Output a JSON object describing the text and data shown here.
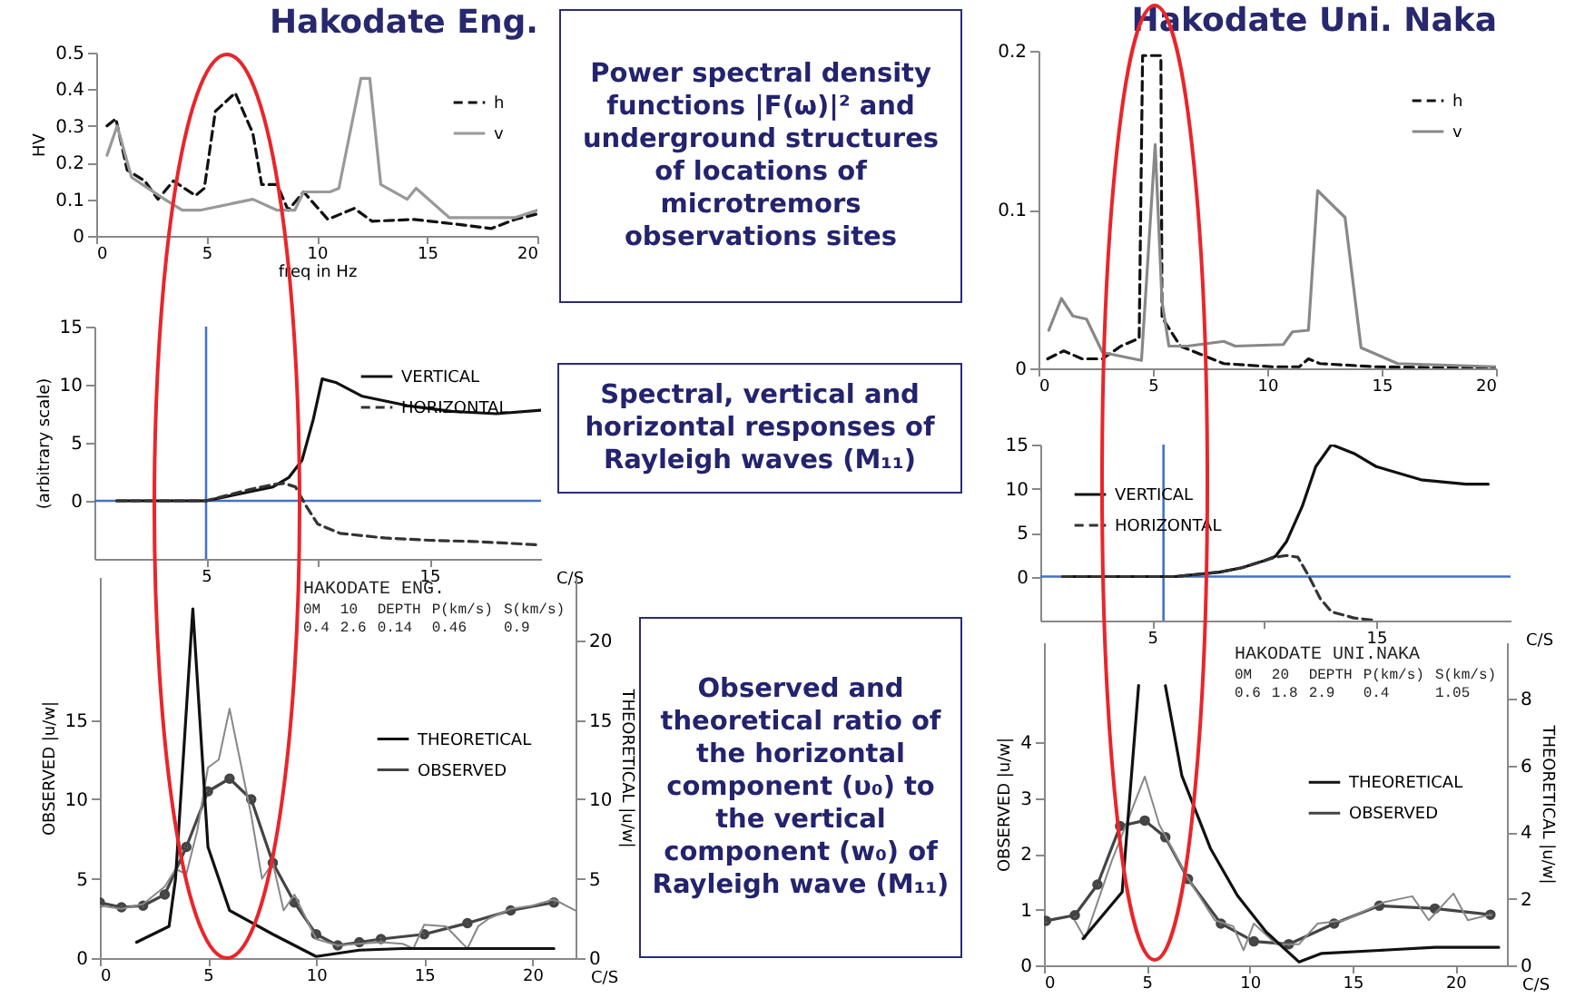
{
  "chart_data": [
    {
      "type": "line",
      "title": "Hakodate Eng.",
      "xlabel": "freq in Hz",
      "ylabel": "HV",
      "xlim": [
        0,
        20
      ],
      "xticks": [
        0,
        5,
        10,
        15,
        20
      ],
      "ylim": [
        0,
        0.5
      ],
      "yticks": [
        0,
        0.1,
        0.2,
        0.3,
        0.4,
        0.5
      ],
      "grid": false,
      "legend": "top right",
      "series": [
        {
          "name": "h",
          "color": "#111111",
          "line_style": "dashed",
          "x": [
            0.49,
            0.89,
            1.4,
            2.2,
            2.8,
            3.5,
            4.5,
            4.9,
            5.4,
            6.3,
            7.1,
            7.5,
            8.2,
            8.7,
            9.4,
            10.5,
            11.7,
            12.5,
            14.4,
            16.6,
            17.9,
            19,
            20
          ],
          "values": [
            0.3,
            0.32,
            0.18,
            0.15,
            0.1,
            0.15,
            0.11,
            0.13,
            0.34,
            0.39,
            0.28,
            0.14,
            0.14,
            0.07,
            0.12,
            0.045,
            0.075,
            0.04,
            0.045,
            0.03,
            0.02,
            0.045,
            0.06
          ]
        },
        {
          "name": "v",
          "color": "#999999",
          "line_style": "solid",
          "x": [
            0.49,
            0.95,
            1.6,
            3.1,
            3.9,
            4.7,
            6.3,
            7.1,
            8.2,
            9,
            9.4,
            10.6,
            11,
            12,
            12.4,
            12.9,
            14.1,
            14.5,
            16,
            19,
            20
          ],
          "values": [
            0.22,
            0.3,
            0.16,
            0.1,
            0.07,
            0.07,
            0.09,
            0.1,
            0.07,
            0.07,
            0.12,
            0.12,
            0.13,
            0.43,
            0.43,
            0.14,
            0.1,
            0.13,
            0.05,
            0.05,
            0.07
          ]
        }
      ]
    },
    {
      "type": "other",
      "title": "Power spectral density functions |F(ω)|² and underground structures of locations of microtremors observations sites"
    },
    {
      "type": "line",
      "title": "Hakodate Uni. Naka",
      "xlim": [
        0,
        20
      ],
      "xticks": [
        0,
        5,
        10,
        15,
        20
      ],
      "ylim": [
        0,
        0.2
      ],
      "yticks": [
        0,
        0.1,
        0.2
      ],
      "grid": false,
      "legend": "top right",
      "series": [
        {
          "name": "h",
          "color": "#111111",
          "line_style": "dashed",
          "x": [
            0.4,
            1.1,
            1.9,
            2.8,
            3.6,
            4.4,
            4.55,
            5.35,
            5.4,
            6.2,
            8.1,
            10.2,
            11.4,
            11.8,
            12.3,
            14.7,
            20
          ],
          "values": [
            0.006,
            0.011,
            0.006,
            0.006,
            0.014,
            0.019,
            0.197,
            0.197,
            0.032,
            0.014,
            0.003,
            0.001,
            0.001,
            0.006,
            0.003,
            0.001,
            0
          ]
        },
        {
          "name": "v",
          "color": "#888888",
          "line_style": "solid",
          "x": [
            0.45,
            1,
            1.5,
            2.1,
            2.8,
            4.5,
            5.1,
            5.4,
            5.7,
            6.5,
            8.1,
            8.6,
            10.7,
            11.1,
            11.8,
            12.2,
            13.4,
            14.1,
            15.7,
            20
          ],
          "values": [
            0.024,
            0.044,
            0.033,
            0.031,
            0.01,
            0.005,
            0.141,
            0.042,
            0.014,
            0.014,
            0.017,
            0.014,
            0.015,
            0.023,
            0.024,
            0.112,
            0.095,
            0.013,
            0.003,
            0.001
          ]
        }
      ]
    },
    {
      "type": "line",
      "xlabel": "C/S",
      "ylabel": "(arbitrary scale)",
      "xlim": [
        0,
        20
      ],
      "xticks": [
        5,
        {
          "value": 10,
          "label": null
        },
        15
      ],
      "ylim": [
        -5,
        15
      ],
      "yticks": [
        0,
        5,
        10,
        15
      ],
      "grid": false,
      "legend": "top right",
      "ref_lines": [
        {
          "axis": "x",
          "value": 5,
          "color": "#4472c4"
        },
        {
          "axis": "y",
          "value": 0,
          "color": "#4472c4"
        }
      ],
      "series": [
        {
          "name": "VERTICAL",
          "color": "#111111",
          "line_style": "solid",
          "x": [
            1,
            3,
            5,
            6,
            7,
            8,
            8.7,
            9.3,
            9.8,
            10.2,
            10.8,
            12,
            14,
            16,
            18,
            20
          ],
          "values": [
            0,
            0,
            0,
            0.4,
            0.8,
            1.2,
            2,
            3.5,
            7,
            10.5,
            10.2,
            9,
            8.2,
            7.7,
            7.5,
            7.8
          ]
        },
        {
          "name": "HORIZONTAL",
          "color": "#333333",
          "line_style": "dashed",
          "x": [
            1,
            3,
            5,
            6,
            7,
            8,
            8.5,
            9,
            9.5,
            10,
            11,
            13,
            15,
            17,
            20
          ],
          "values": [
            0,
            0,
            0,
            0.5,
            1,
            1.4,
            1.5,
            1.2,
            -0.5,
            -2,
            -2.8,
            -3.2,
            -3.4,
            -3.5,
            -3.8
          ]
        }
      ]
    },
    {
      "type": "other",
      "title": "Spectral, vertical and horizontal responses of Rayleigh waves (M₁₁)"
    },
    {
      "type": "line",
      "xlabel": "C/S",
      "xlim": [
        0,
        21
      ],
      "xticks": [
        5,
        {
          "value": 10,
          "label": null
        },
        15
      ],
      "ylim": [
        -5,
        15
      ],
      "yticks": [
        0,
        5,
        10,
        15
      ],
      "grid": false,
      "legend": "top left",
      "ref_lines": [
        {
          "axis": "x",
          "value": 5.5,
          "color": "#4472c4"
        },
        {
          "axis": "y",
          "value": 0,
          "color": "#4472c4"
        }
      ],
      "series": [
        {
          "name": "VERTICAL",
          "color": "#111111",
          "line_style": "solid",
          "x": [
            1,
            3,
            5,
            6,
            8,
            9,
            10,
            10.5,
            11,
            11.7,
            12.3,
            13,
            14,
            15,
            17,
            19,
            20
          ],
          "values": [
            0,
            0,
            0,
            0,
            0.5,
            1,
            1.8,
            2.3,
            4,
            8,
            12.5,
            15,
            14,
            12.5,
            11,
            10.5,
            10.5
          ]
        },
        {
          "name": "HORIZONTAL",
          "color": "#333333",
          "line_style": "dashed",
          "x": [
            1,
            3,
            5,
            6,
            8,
            9,
            10,
            10.5,
            11,
            11.5,
            12,
            12.5,
            13,
            14,
            15
          ],
          "values": [
            0,
            0,
            0,
            0,
            0.5,
            1,
            1.8,
            2.2,
            2.4,
            2.2,
            0,
            -2.5,
            -4,
            -4.7,
            -5
          ]
        }
      ]
    },
    {
      "type": "other",
      "title": "Observed and theoretical ratio of the horizontal component (υ₀) to the vertical component (w₀) of Rayleigh wave (M₁₁)"
    },
    {
      "type": "line",
      "xlabel": "C/S",
      "ylabel": "OBSERVED |u/w|",
      "y2label": "THEORETICAL |u/w|",
      "xlim": [
        0,
        22
      ],
      "xticks": [
        0,
        5,
        10,
        15,
        20
      ],
      "ylim": [
        0,
        24
      ],
      "yticks": [
        0,
        5,
        10,
        15
      ],
      "y2lim": [
        0,
        24
      ],
      "y2ticks": [
        0,
        5,
        10,
        15,
        20
      ],
      "grid": false,
      "legend": "right",
      "annotations": [
        "HAKODATE ENG.",
        "0M",
        "10",
        "DEPTH",
        "P(km/s)",
        "S(km/s)",
        "0.4",
        "2.6",
        "0.14",
        "0.46",
        "0.9"
      ],
      "series": [
        {
          "name": "THEORETICAL",
          "color": "#111111",
          "line_style": "solid",
          "axis": "y2",
          "x": [
            1.7,
            3.2,
            3.5,
            4.3,
            5,
            6,
            8,
            10,
            12,
            14,
            21
          ],
          "values": [
            1,
            2,
            5,
            22,
            7,
            3,
            1.5,
            0.1,
            0.5,
            0.6,
            0.6
          ]
        },
        {
          "name": "OBSERVED",
          "color": "#444444",
          "line_style": "solid",
          "marker": "circle",
          "x": [
            0,
            1,
            2,
            3,
            4,
            5,
            6,
            7,
            8,
            9,
            10,
            11,
            12,
            13,
            15,
            17,
            19,
            21
          ],
          "values": [
            3.5,
            3.2,
            3.3,
            4,
            7,
            10.5,
            11.3,
            10,
            6,
            3.5,
            1.5,
            0.8,
            1,
            1.2,
            1.5,
            2.2,
            3,
            3.5
          ]
        },
        {
          "color": "#888888",
          "line_style": "solid",
          "x": [
            0,
            1,
            2,
            3,
            3.5,
            4,
            4.5,
            5,
            5.5,
            6,
            7,
            7.5,
            8,
            8.5,
            9,
            10,
            11,
            13,
            14,
            14.5,
            15,
            16,
            17,
            17.5,
            18,
            19,
            20,
            21,
            22
          ],
          "values": [
            3.3,
            3.1,
            3.4,
            4.5,
            5.6,
            5.3,
            8,
            12,
            12.5,
            15.7,
            9,
            5,
            6,
            3,
            4,
            1.2,
            0.8,
            1,
            0.9,
            0.6,
            2.1,
            2,
            0.6,
            2,
            2.5,
            3.1,
            3.3,
            3.7,
            3
          ]
        }
      ]
    },
    {
      "type": "line",
      "xlabel": "C/S",
      "ylabel": "OBSERVED |u/w|",
      "y2label": "THEORETICAL |u/w|",
      "xlim": [
        0,
        22.5
      ],
      "xticks": [
        0,
        5,
        10,
        15,
        20
      ],
      "ylim": [
        0,
        5.8
      ],
      "yticks": [
        0,
        1,
        2,
        3,
        4
      ],
      "y2lim": [
        0,
        9.7
      ],
      "y2ticks": [
        0,
        2,
        4,
        6,
        8
      ],
      "grid": false,
      "legend": "right",
      "annotations": [
        "HAKODATE UNI.NAKA",
        "0M",
        "20",
        "DEPTH",
        "P(km/s)",
        "S(km/s)",
        "0.6",
        "1.8",
        "2.9",
        "0.4",
        "1.05"
      ],
      "series": [
        {
          "name": "THEORETICAL",
          "color": "#111111",
          "line_style": "solid",
          "axis": "y2",
          "x": [
            1.9,
            3.8,
            4.6,
            5.25,
            5.9,
            6.7,
            8.1,
            9.4,
            10.8,
            12.4,
            13.5,
            16.3,
            19,
            22.1
          ],
          "values": [
            0.8,
            2.2,
            8.4,
            null,
            8.4,
            5.7,
            3.5,
            2.1,
            1,
            0.1,
            0.36,
            0.45,
            0.54,
            0.54
          ]
        },
        {
          "name": "OBSERVED",
          "color": "#444444",
          "line_style": "solid",
          "marker": "circle",
          "x": [
            0.1,
            1.5,
            2.6,
            3.7,
            4.9,
            5.9,
            7,
            8.6,
            10.2,
            11.9,
            14.1,
            16.3,
            19,
            21.7
          ],
          "values": [
            0.8,
            0.9,
            1.45,
            2.5,
            2.6,
            2.3,
            1.55,
            0.75,
            0.43,
            0.38,
            0.75,
            1.07,
            1.02,
            0.91
          ]
        },
        {
          "color": "#888888",
          "line_style": "solid",
          "x": [
            1.5,
            2,
            2.6,
            3.3,
            4,
            4.9,
            5.6,
            7,
            8.3,
            9.2,
            9.7,
            10.2,
            11.3,
            12.4,
            13.3,
            14.6,
            16.5,
            17.9,
            18.7,
            19.9,
            20.6,
            21.7
          ],
          "values": [
            0.8,
            0.48,
            1.13,
            1.88,
            2.53,
            3.39,
            2.53,
            1.56,
            0.81,
            0.7,
            0.27,
            0.75,
            0.38,
            0.38,
            0.75,
            0.81,
            1.13,
            1.24,
            0.81,
            1.29,
            0.81,
            0.91
          ]
        }
      ]
    }
  ]
}
